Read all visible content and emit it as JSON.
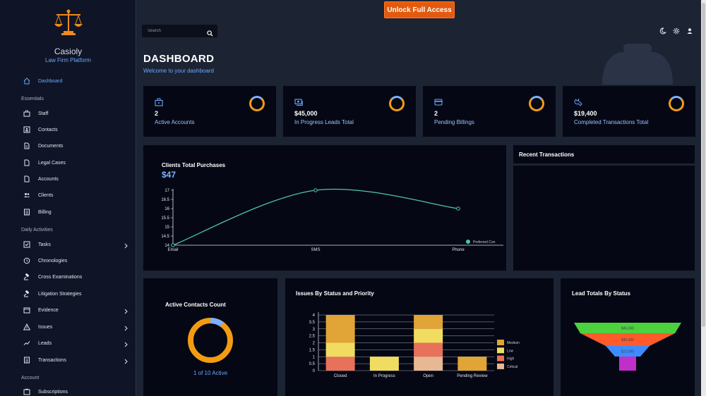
{
  "brand": {
    "name": "Casioly",
    "subtitle": "Law Firm Platform"
  },
  "sidebar": {
    "dashboard": "Dashboard",
    "sections": [
      "Essentials",
      "Daily Activities",
      "Account"
    ],
    "essentials": [
      "Staff",
      "Contacts",
      "Documents",
      "Legal Cases",
      "Accounts",
      "Clients",
      "Billing"
    ],
    "daily": [
      "Tasks",
      "Chronologies",
      "Cross Examinations",
      "Litigation Strategies",
      "Evidence",
      "Issues",
      "Leads",
      "Transactions"
    ],
    "account": [
      "Subscriptions"
    ]
  },
  "topbar": {
    "unlock_label": "Unlock Full Access",
    "search_placeholder": "Search"
  },
  "header": {
    "title": "DASHBOARD",
    "subtitle": "Welcome to your dashboard"
  },
  "cards": [
    {
      "value": "2",
      "label": "Active Accounts",
      "icon": "briefcase-icon"
    },
    {
      "value": "$45,000",
      "label": "In Progress Leads Total",
      "icon": "money-icon"
    },
    {
      "value": "2",
      "label": "Pending Billings",
      "icon": "card-icon"
    },
    {
      "value": "$19,400",
      "label": "Completed Transactions Total",
      "icon": "wrench-icon"
    }
  ],
  "purchases": {
    "title": "Clients Total Purchases",
    "total": "$47"
  },
  "recent": {
    "title": "Recent Transactions"
  },
  "contacts": {
    "title": "Active Contacts Count",
    "caption": "1 of 10 Active"
  },
  "issues": {
    "title": "Issues By Status and Priority"
  },
  "leads": {
    "title": "Lead Totals By Status"
  },
  "colors": {
    "accent": "#6aa8ff",
    "unlock": "#e35a0e",
    "line": "#4fc3a8",
    "donut": "#f39c12"
  },
  "chart_data": [
    {
      "type": "line",
      "title": "Clients Total Purchases",
      "categories": [
        "Email",
        "SMS",
        "Phone"
      ],
      "series": [
        {
          "name": "Preferred Con",
          "values": [
            14,
            17,
            16
          ]
        }
      ],
      "yticks": [
        "14",
        "14.5",
        "15",
        "15.5",
        "16",
        "16.5",
        "17"
      ],
      "ylim": [
        14,
        17
      ],
      "legend": "right"
    },
    {
      "type": "bar",
      "title": "Issues By Status and Priority",
      "categories": [
        "Closed",
        "In Progress",
        "Open",
        "Pending Review"
      ],
      "yticks": [
        "0",
        "0.5",
        "1",
        "1.5",
        "2",
        "2.5",
        "3",
        "3.5",
        "4"
      ],
      "ylim": [
        0,
        4
      ],
      "legend": "right",
      "series": [
        {
          "name": "Critical",
          "color": "#e8b895",
          "values": [
            0,
            0,
            1,
            0
          ]
        },
        {
          "name": "High",
          "color": "#e8715a",
          "values": [
            1,
            0,
            1,
            0
          ]
        },
        {
          "name": "Low",
          "color": "#f0dc60",
          "values": [
            1,
            1,
            1,
            0
          ]
        },
        {
          "name": "Medium",
          "color": "#e0a437",
          "values": [
            2,
            0,
            1,
            1
          ]
        }
      ],
      "legend_order": [
        "Medium",
        "Low",
        "High",
        "Critical"
      ]
    },
    {
      "type": "funnel",
      "title": "Lead Totals By Status",
      "values": [
        {
          "label": "$45,000",
          "color": "#4cd23c"
        },
        {
          "label": "$40,000",
          "color": "#ff5a2a"
        },
        {
          "label": "$17,000",
          "color": "#3d8bff"
        },
        {
          "label": "",
          "color": "#c030c8"
        }
      ]
    }
  ]
}
